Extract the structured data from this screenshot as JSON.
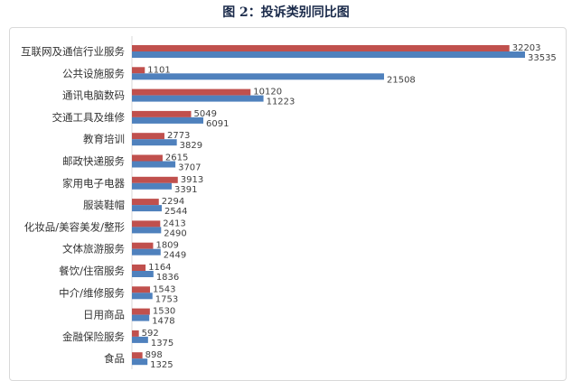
{
  "title": "图 2：投诉类别同比图",
  "chart_data": {
    "type": "bar",
    "orientation": "horizontal",
    "title": "图 2：投诉类别同比图",
    "categories": [
      "互联网及通信行业服务",
      "公共设施服务",
      "通讯电脑数码",
      "交通工具及维修",
      "教育培训",
      "邮政快递服务",
      "家用电子电器",
      "服装鞋帽",
      "化妆品/美容美发/整形",
      "文体旅游服务",
      "餐饮/住宿服务",
      "中介/维修服务",
      "日用商品",
      "金融保险服务",
      "食品"
    ],
    "series": [
      {
        "values": [
          32203,
          1101,
          10120,
          5049,
          2773,
          2615,
          3913,
          2294,
          2413,
          1809,
          1164,
          1543,
          1530,
          592,
          898
        ],
        "color": "#c0504d"
      },
      {
        "values": [
          33535,
          21508,
          11223,
          6091,
          3829,
          3707,
          3391,
          2544,
          2490,
          2449,
          1836,
          1753,
          1478,
          1375,
          1325
        ],
        "color": "#4f81bd"
      }
    ],
    "xlim": [
      0,
      35000
    ],
    "grid": false,
    "data_labels": true
  }
}
